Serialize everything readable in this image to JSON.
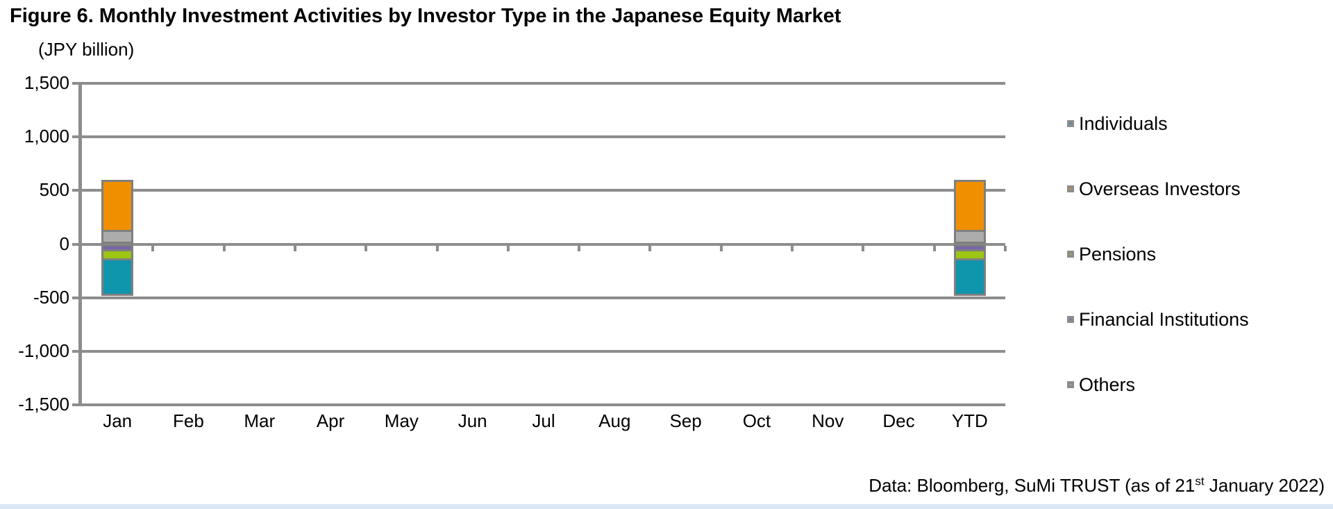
{
  "title": "Figure 6. Monthly Investment Activities by Investor Type in the Japanese Equity Market",
  "unit_label": "(JPY billion)",
  "caption": {
    "prefix": "Data: Bloomberg, SuMi TRUST (as of 21",
    "superscript": "st",
    "suffix": " January 2022)"
  },
  "colors": {
    "grid": "#8d8d8d",
    "bar_border": "#7f7f7f",
    "legend_swatch_border": "#8c8c8c",
    "individuals": "#0f95ac",
    "overseas_investors": "#f09000",
    "pensions": "#9cc613",
    "financial_institutions": "#7765a9",
    "others": "#acacac",
    "bottom_strip": "#dbe7f4"
  },
  "chart_data": {
    "type": "bar",
    "stacked": true,
    "title": "Figure 6. Monthly Investment Activities by Investor Type in the Japanese Equity Market",
    "ylabel": "(JPY billion)",
    "xlabel": "",
    "ylim": [
      -1500,
      1500
    ],
    "ytick_values": [
      1500,
      1000,
      500,
      0,
      -500,
      -1000,
      -1500
    ],
    "ytick_labels": [
      "1,500",
      "1,000",
      "500",
      "0",
      "-500",
      "-1,000",
      "-1,500"
    ],
    "grid": true,
    "legend_position": "right",
    "stack_order_note": "positive and negative stacks build outward from the zero axis in reverse series order",
    "categories": [
      "Jan",
      "Feb",
      "Mar",
      "Apr",
      "May",
      "Jun",
      "Jul",
      "Aug",
      "Sep",
      "Oct",
      "Nov",
      "Dec",
      "YTD"
    ],
    "series": [
      {
        "name": "Individuals",
        "color": "#0f95ac",
        "values": [
          -330,
          0,
          0,
          0,
          0,
          0,
          0,
          0,
          0,
          0,
          0,
          0,
          -330
        ]
      },
      {
        "name": "Overseas Investors",
        "color": "#f09000",
        "values": [
          470,
          0,
          0,
          0,
          0,
          0,
          0,
          0,
          0,
          0,
          0,
          0,
          470
        ]
      },
      {
        "name": "Pensions",
        "color": "#9cc613",
        "values": [
          -85,
          0,
          0,
          0,
          0,
          0,
          0,
          0,
          0,
          0,
          0,
          0,
          -85
        ]
      },
      {
        "name": "Financial Institutions",
        "color": "#7765a9",
        "values": [
          -70,
          0,
          0,
          0,
          0,
          0,
          0,
          0,
          0,
          0,
          0,
          0,
          -70
        ]
      },
      {
        "name": "Others",
        "color": "#acacac",
        "values": [
          130,
          0,
          0,
          0,
          0,
          0,
          0,
          0,
          0,
          0,
          0,
          0,
          130
        ]
      }
    ]
  }
}
